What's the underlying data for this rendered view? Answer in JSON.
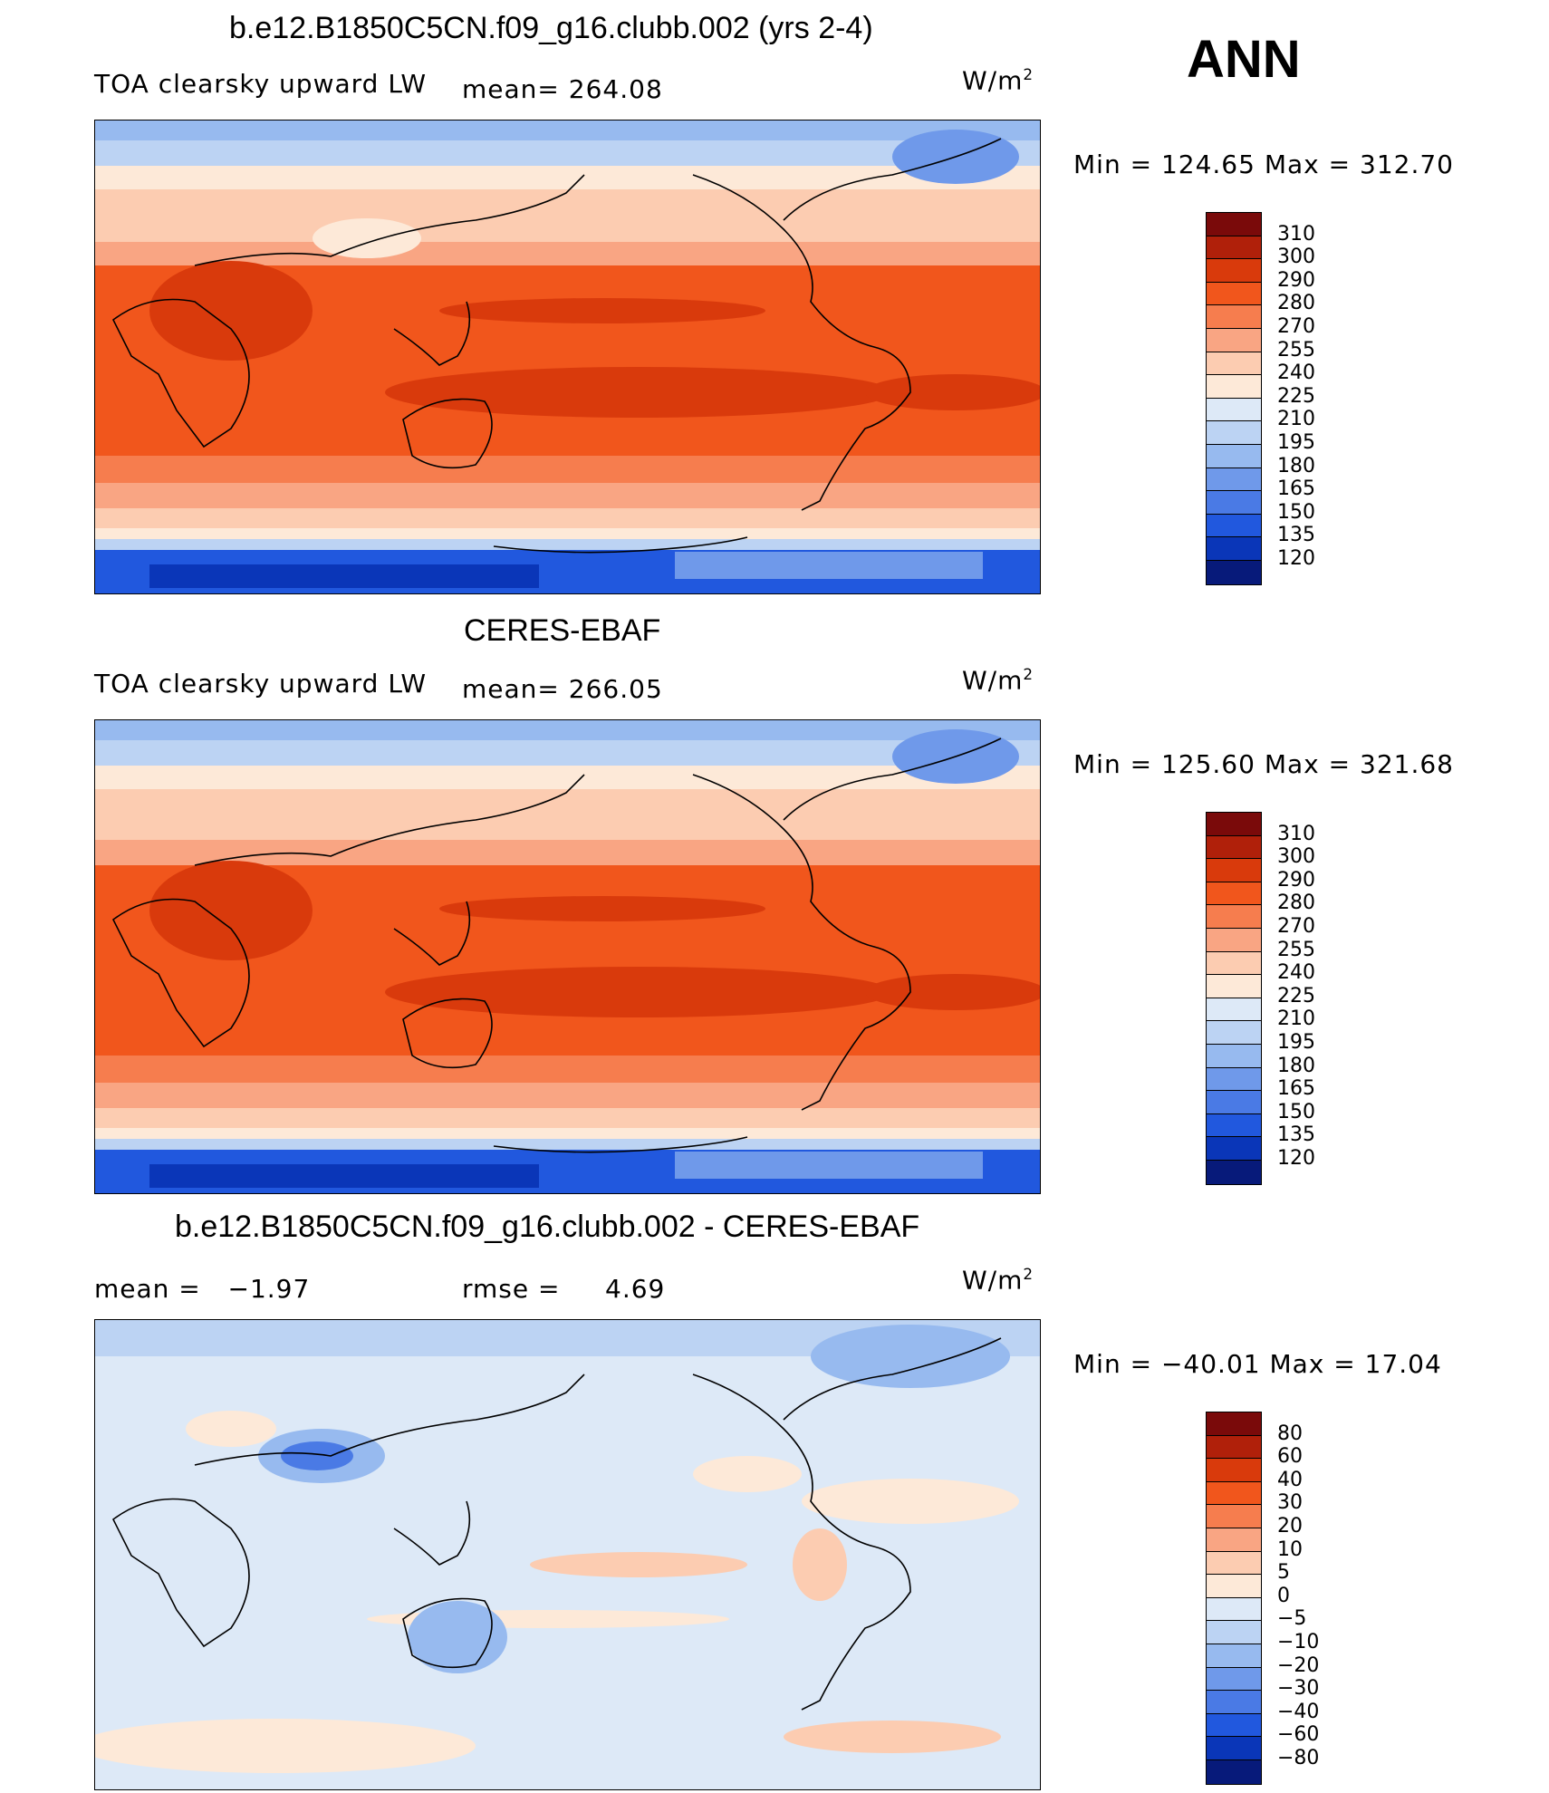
{
  "season": "ANN",
  "panels": [
    {
      "title": "b.e12.B1850C5CN.f09_g16.clubb.002 (yrs 2-4)",
      "left_label": "TOA clearsky upward LW",
      "stat_label": "mean=",
      "stat_value": "264.08",
      "unit_base": "W/m",
      "unit_sup": "2",
      "min_label": "Min",
      "min_value": "124.65",
      "max_label": "Max",
      "max_value": "312.70",
      "colorbar_ticks": [
        "310",
        "300",
        "290",
        "280",
        "270",
        "255",
        "240",
        "225",
        "210",
        "195",
        "180",
        "165",
        "150",
        "135",
        "120"
      ]
    },
    {
      "title": "CERES-EBAF",
      "left_label": "TOA clearsky upward LW",
      "stat_label": "mean=",
      "stat_value": "266.05",
      "unit_base": "W/m",
      "unit_sup": "2",
      "min_label": "Min",
      "min_value": "125.60",
      "max_label": "Max",
      "max_value": "321.68",
      "colorbar_ticks": [
        "310",
        "300",
        "290",
        "280",
        "270",
        "255",
        "240",
        "225",
        "210",
        "195",
        "180",
        "165",
        "150",
        "135",
        "120"
      ]
    },
    {
      "title": "b.e12.B1850C5CN.f09_g16.clubb.002 - CERES-EBAF",
      "mean_label": "mean =",
      "mean_value": "−1.97",
      "rmse_label": "rmse =",
      "rmse_value": "4.69",
      "unit_base": "W/m",
      "unit_sup": "2",
      "min_label": "Min",
      "min_value": "−40.01",
      "max_label": "Max",
      "max_value": "17.04",
      "colorbar_ticks": [
        "80",
        "60",
        "40",
        "30",
        "20",
        "10",
        "5",
        "0",
        "−5",
        "−10",
        "−20",
        "−30",
        "−40",
        "−60",
        "−80"
      ]
    }
  ],
  "colors": {
    "abs_scale": [
      "#7a0a0a",
      "#b0200a",
      "#d93a0c",
      "#f1561c",
      "#f67d4e",
      "#f9a583",
      "#fcccb1",
      "#fde9d8",
      "#dde9f7",
      "#bcd3f3",
      "#97baef",
      "#6f99ea",
      "#4a7ae5",
      "#2158de",
      "#0a36b8",
      "#071a7a"
    ],
    "diff_scale": [
      "#7a0a0a",
      "#b0200a",
      "#d93a0c",
      "#f1561c",
      "#f67d4e",
      "#f9a583",
      "#fcccb1",
      "#fde9d8",
      "#dde9f7",
      "#bcd3f3",
      "#97baef",
      "#6f99ea",
      "#4a7ae5",
      "#2158de",
      "#0a36b8",
      "#071a7a"
    ]
  }
}
